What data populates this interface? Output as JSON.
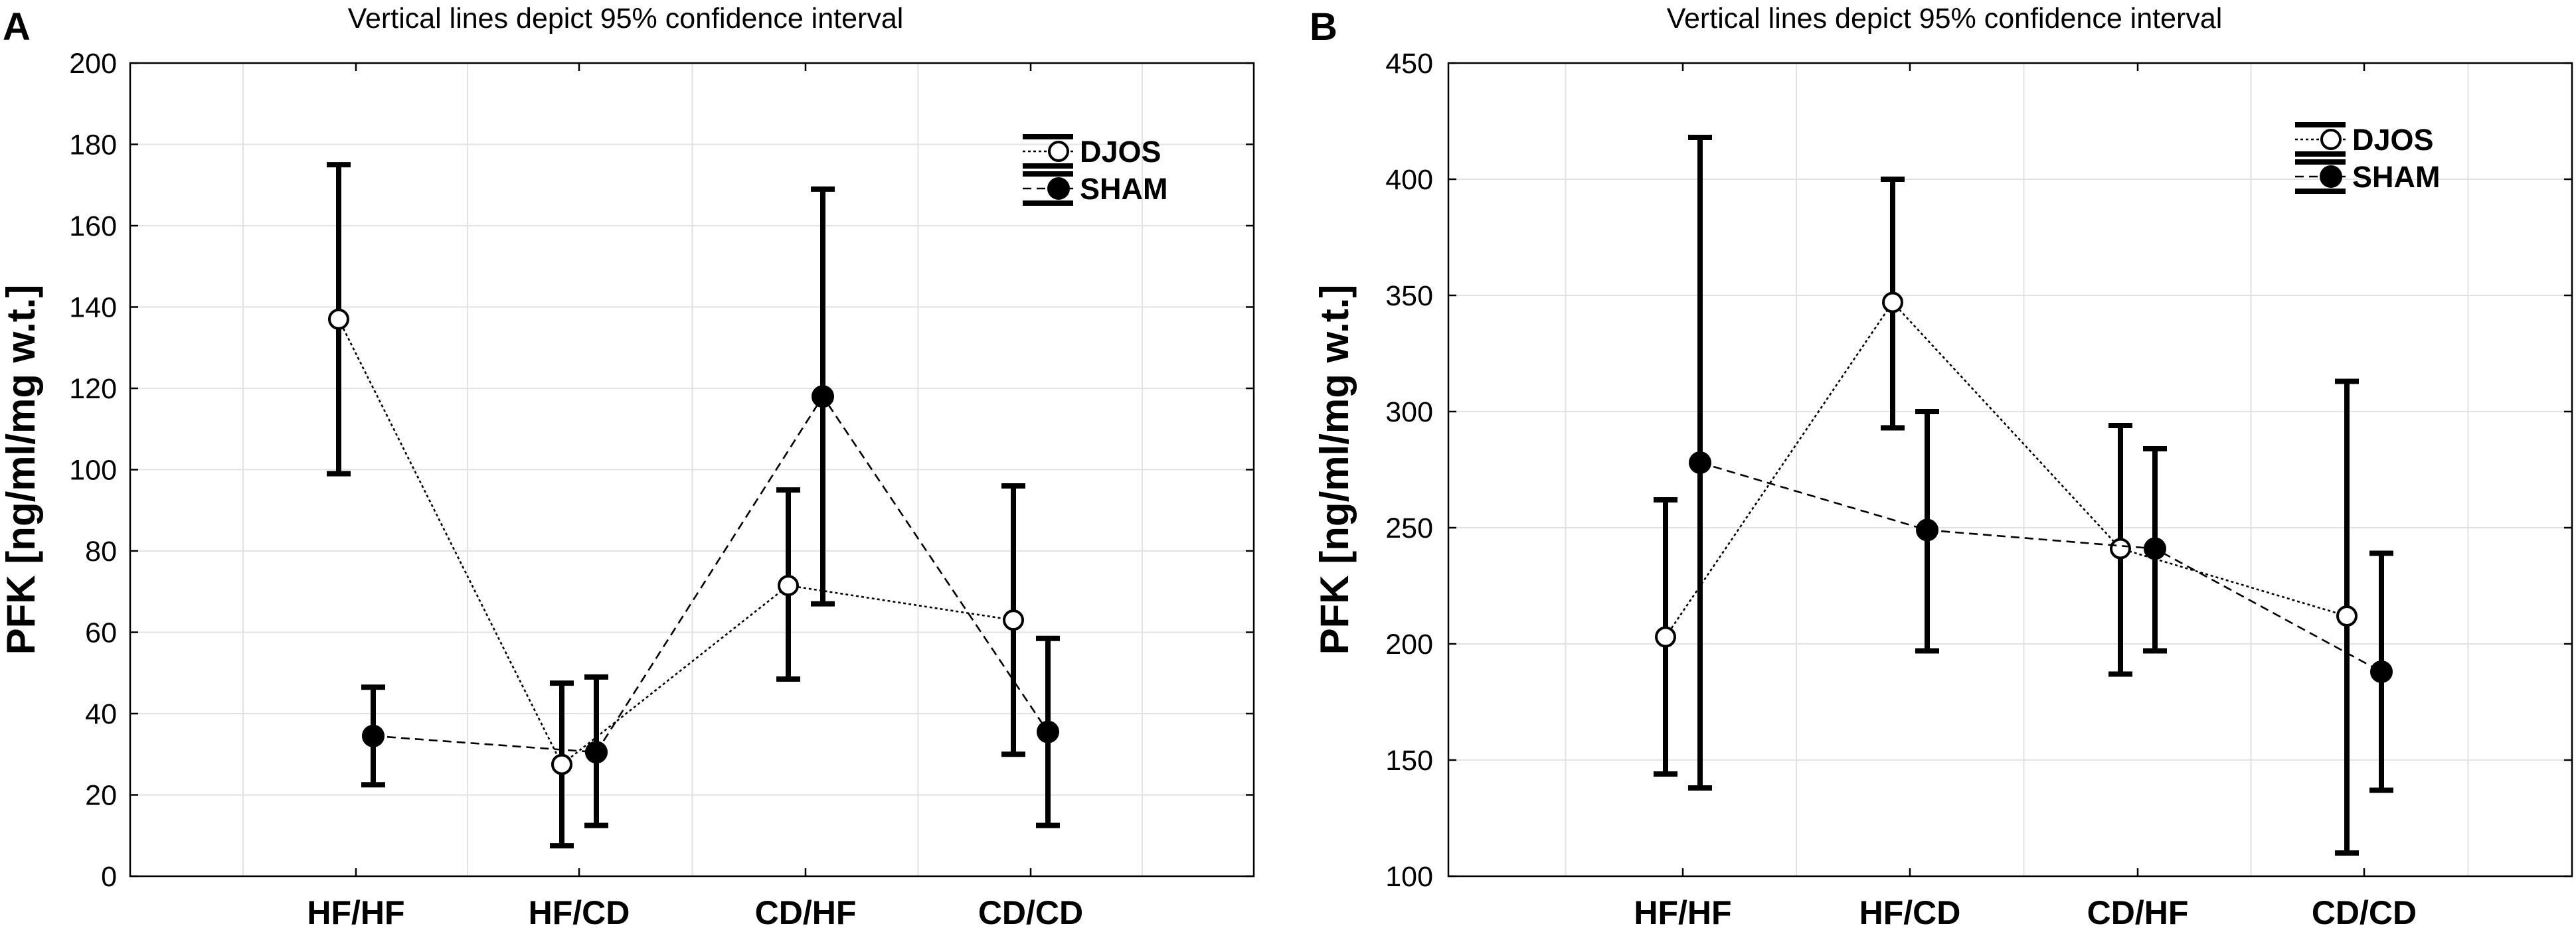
{
  "chart_data": [
    {
      "type": "line",
      "panel_label": "A",
      "title": "Vertical lines depict 95% confidence interval",
      "xlabel": "",
      "ylabel": "PFK [ng/ml/mg w.t.]",
      "ylim": [
        0,
        200
      ],
      "yticks": [
        "0",
        "20",
        "40",
        "60",
        "80",
        "100",
        "120",
        "140",
        "160",
        "180",
        "200"
      ],
      "categories": [
        "HF/HF",
        "HF/CD",
        "CD/HF",
        "CD/CD"
      ],
      "grid": true,
      "legend_position": "top-right",
      "series": [
        {
          "name": "DJOS",
          "marker": "open-circle",
          "values": [
            137,
            27.5,
            71.5,
            63
          ],
          "ci_low": [
            99,
            7.5,
            48.5,
            30
          ],
          "ci_high": [
            175,
            47.5,
            95,
            96
          ]
        },
        {
          "name": "SHAM",
          "marker": "filled-circle",
          "values": [
            34.5,
            30.5,
            118,
            35.5
          ],
          "ci_low": [
            22.5,
            12.5,
            67,
            12.5
          ],
          "ci_high": [
            46.5,
            49,
            169,
            58.5
          ]
        }
      ]
    },
    {
      "type": "line",
      "panel_label": "B",
      "title": "Vertical lines depict 95% confidence interval",
      "xlabel": "",
      "ylabel": "PFK [ng/ml/mg w.t.]",
      "ylim": [
        100,
        450
      ],
      "yticks": [
        "100",
        "150",
        "200",
        "250",
        "300",
        "350",
        "400",
        "450"
      ],
      "categories": [
        "HF/HF",
        "HF/CD",
        "CD/HF",
        "CD/CD"
      ],
      "grid": true,
      "legend_position": "top-right",
      "series": [
        {
          "name": "DJOS",
          "marker": "open-circle",
          "values": [
            203,
            347,
            241,
            212
          ],
          "ci_low": [
            144,
            293,
            187,
            110
          ],
          "ci_high": [
            262,
            400,
            294,
            313
          ]
        },
        {
          "name": "SHAM",
          "marker": "filled-circle",
          "values": [
            278,
            249,
            241,
            188
          ],
          "ci_low": [
            138,
            197,
            197,
            137
          ],
          "ci_high": [
            418,
            300,
            284,
            239
          ]
        }
      ]
    }
  ]
}
